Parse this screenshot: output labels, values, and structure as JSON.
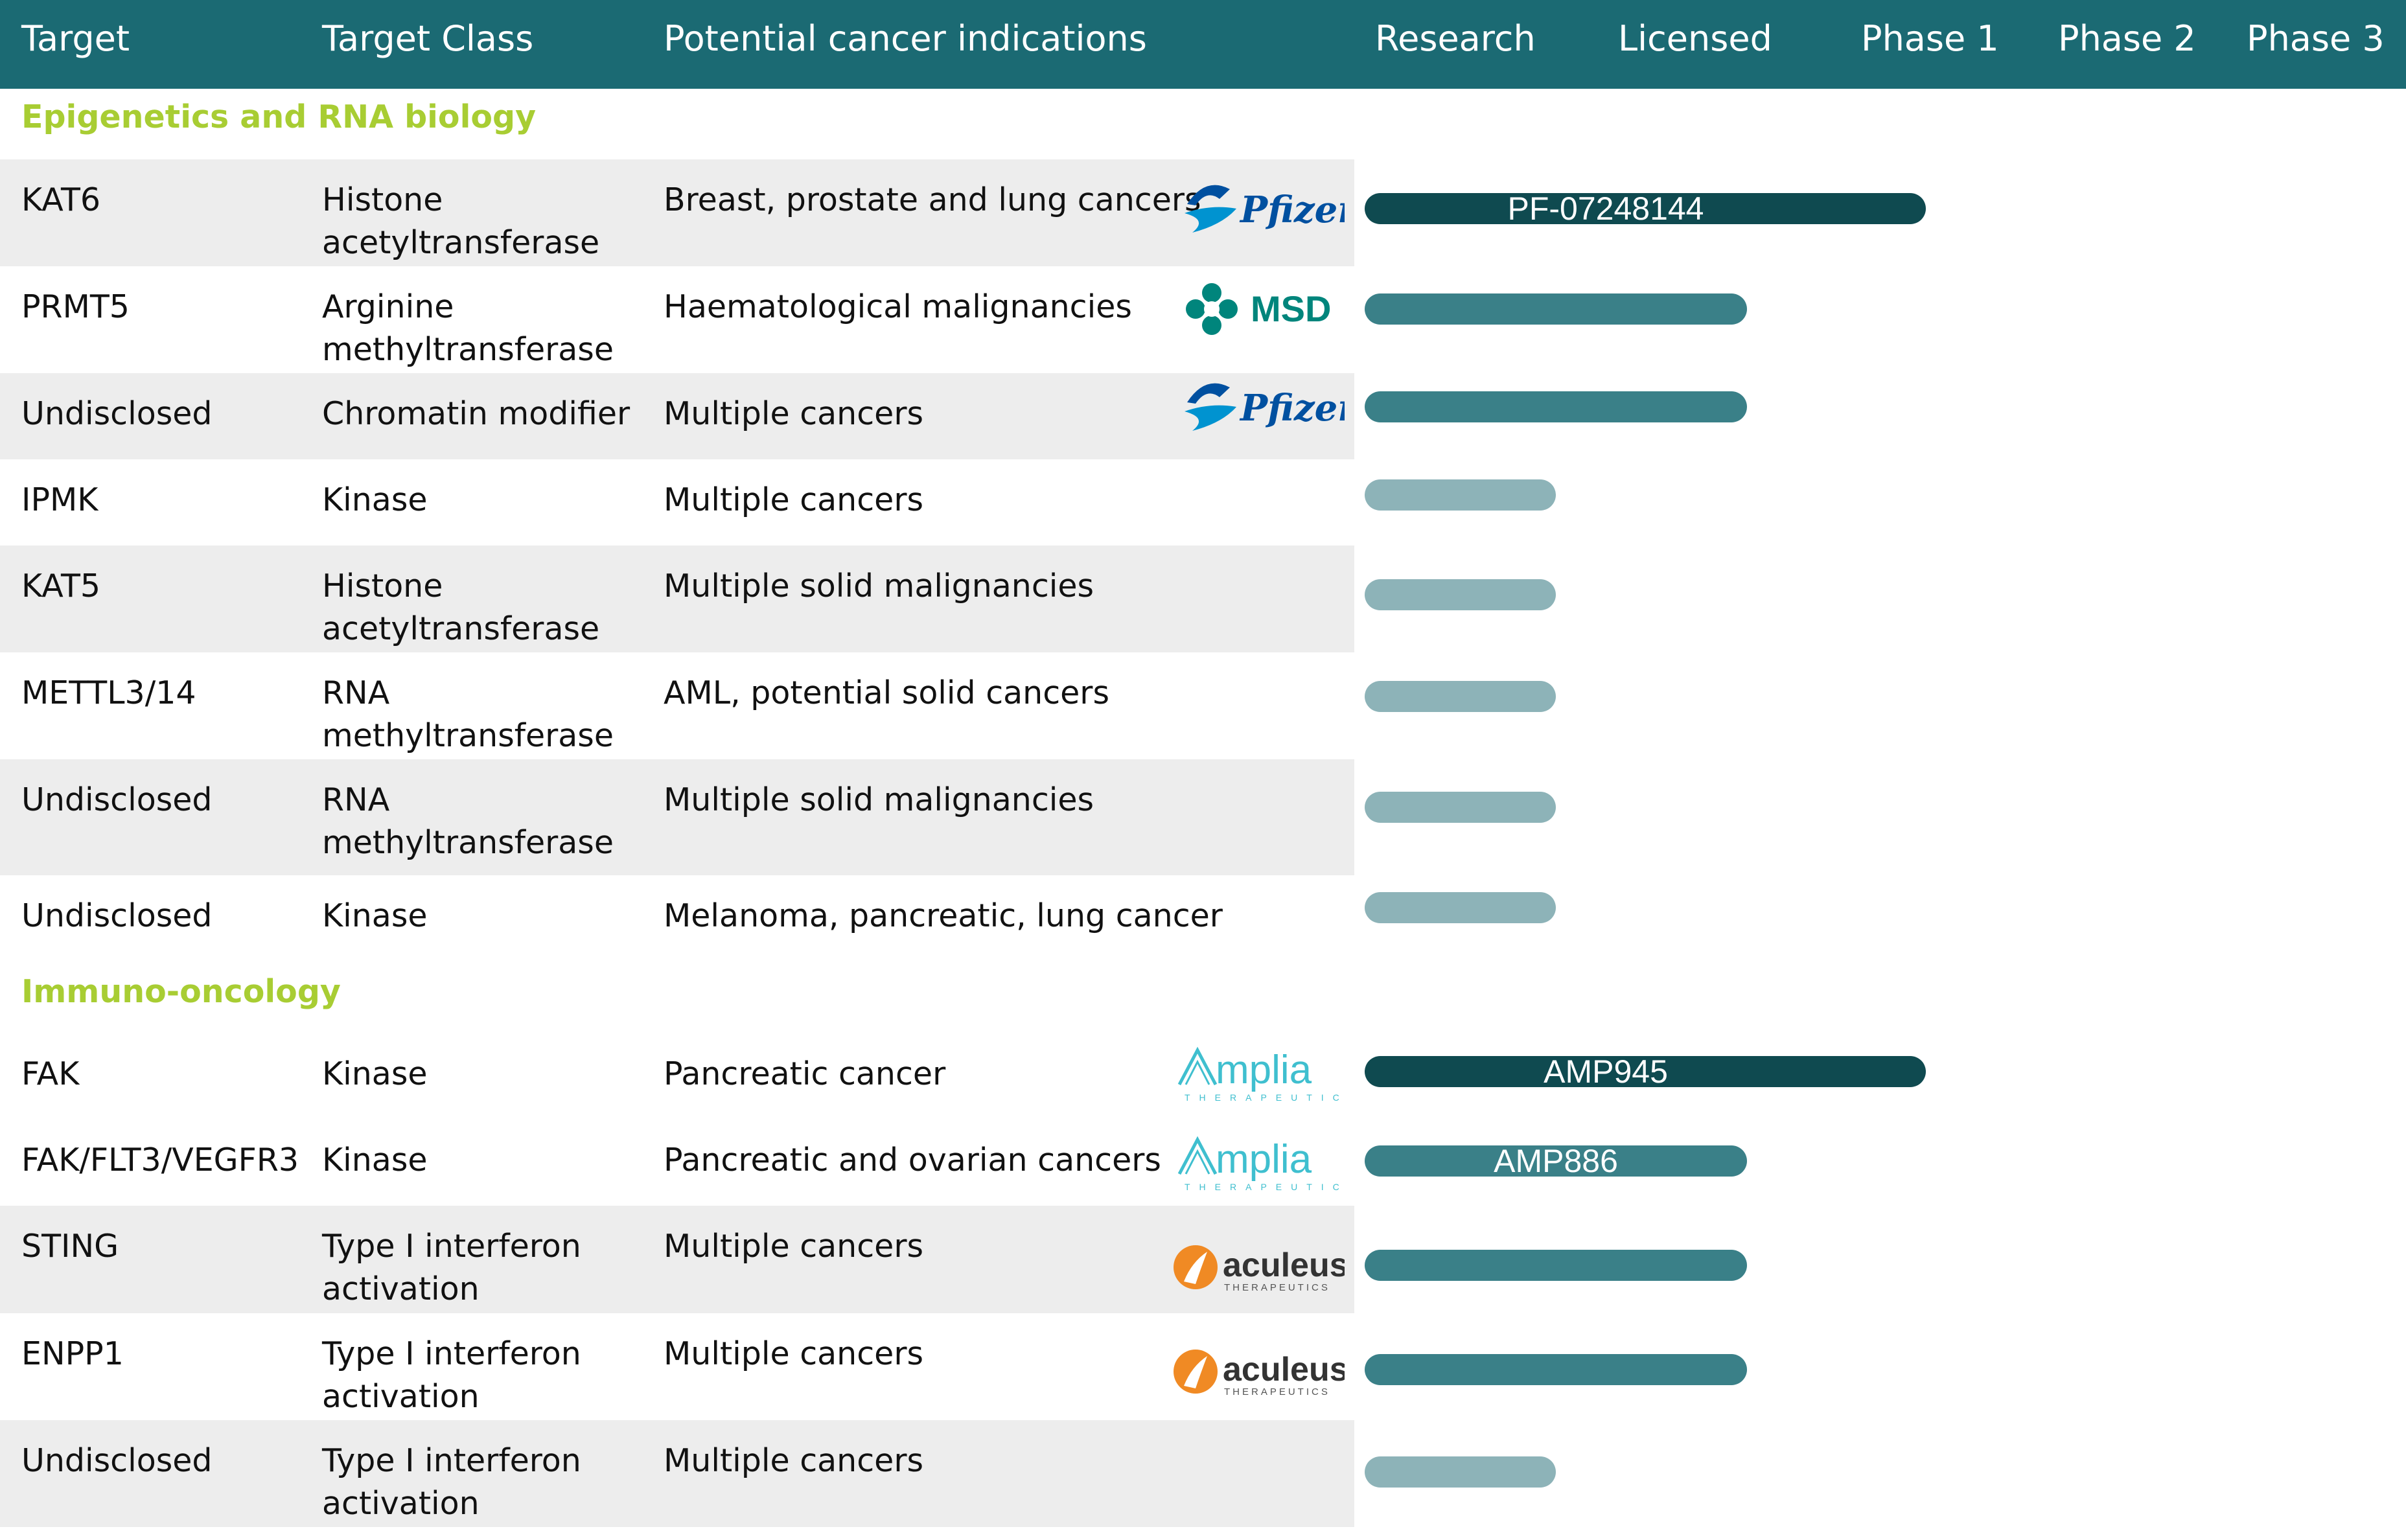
{
  "header": {
    "target": "Target",
    "target_class": "Target Class",
    "indications": "Potential cancer indications",
    "research": "Research",
    "licensed": "Licensed",
    "phase1": "Phase 1",
    "phase2": "Phase 2",
    "phase3": "Phase 3"
  },
  "sections": {
    "epigenetics": "Epigenetics and RNA biology",
    "immuno": "Immuno-oncology"
  },
  "logos": {
    "pfizer": "Pfizer",
    "msd": "MSD",
    "ampla_word": "mplia",
    "ampla_sub": "THERAPEUTICS",
    "aculeus_word": "aculeus",
    "aculeus_sub": "THERAPEUTICS"
  },
  "colors": {
    "header_bg": "#1b6a73",
    "section_text": "#a8cd33",
    "row_shade": "#ededed",
    "phase1_bar": "#0f4a50",
    "licensed_bar": "#3a8088",
    "research_bar": "#8db3b8"
  },
  "rows": [
    {
      "target": "KAT6",
      "class_lines": [
        "Histone",
        "acetyltransferase"
      ],
      "indication": "Breast, prostate and lung cancers",
      "partner": "pfizer"
    },
    {
      "target": "PRMT5",
      "class_lines": [
        "Arginine",
        "methyltransferase"
      ],
      "indication": "Haematological malignancies",
      "partner": "msd"
    },
    {
      "target": "Undisclosed",
      "class_lines": [
        "Chromatin modifier"
      ],
      "indication": "Multiple cancers",
      "partner": "pfizer"
    },
    {
      "target": "IPMK",
      "class_lines": [
        "Kinase"
      ],
      "indication": "Multiple cancers",
      "partner": ""
    },
    {
      "target": "KAT5",
      "class_lines": [
        "Histone",
        "acetyltransferase"
      ],
      "indication": "Multiple solid malignancies",
      "partner": ""
    },
    {
      "target": "METTL3/14",
      "class_lines": [
        "RNA",
        "methyltransferase"
      ],
      "indication": "AML, potential solid cancers",
      "partner": ""
    },
    {
      "target": "Undisclosed",
      "class_lines": [
        "RNA",
        "methyltransferase"
      ],
      "indication": "Multiple solid malignancies",
      "partner": ""
    },
    {
      "target": "Undisclosed",
      "class_lines": [
        "Kinase"
      ],
      "indication": "Melanoma, pancreatic, lung cancer",
      "partner": ""
    },
    {
      "target": "FAK",
      "class_lines": [
        "Kinase"
      ],
      "indication": "Pancreatic cancer",
      "partner": "ampla"
    },
    {
      "target": "FAK/FLT3/VEGFR3",
      "class_lines": [
        "Kinase"
      ],
      "indication": "Pancreatic and ovarian cancers",
      "partner": "ampla"
    },
    {
      "target": "STING",
      "class_lines": [
        "Type I interferon",
        "activation"
      ],
      "indication": "Multiple cancers",
      "partner": "aculeus"
    },
    {
      "target": "ENPP1",
      "class_lines": [
        "Type I interferon",
        "activation"
      ],
      "indication": "Multiple cancers",
      "partner": "aculeus"
    },
    {
      "target": "Undisclosed",
      "class_lines": [
        "Type I interferon",
        "activation"
      ],
      "indication": "Multiple cancers",
      "partner": ""
    }
  ],
  "chart_data": {
    "type": "bar",
    "orientation": "horizontal",
    "stages": [
      "Research",
      "Licensed",
      "Phase 1",
      "Phase 2",
      "Phase 3"
    ],
    "categories": [
      "KAT6",
      "PRMT5",
      "Undisclosed",
      "IPMK",
      "KAT5",
      "METTL3/14",
      "Undisclosed",
      "Undisclosed",
      "FAK",
      "FAK/FLT3/VEGFR3",
      "STING",
      "ENPP1",
      "Undisclosed"
    ],
    "values": [
      {
        "stage": "Phase 1",
        "progress": 1.32,
        "label": "PF-07248144"
      },
      {
        "stage": "Licensed",
        "progress": 0.9,
        "label": ""
      },
      {
        "stage": "Licensed",
        "progress": 0.9,
        "label": ""
      },
      {
        "stage": "Research",
        "progress": 0.45,
        "label": ""
      },
      {
        "stage": "Research",
        "progress": 0.45,
        "label": ""
      },
      {
        "stage": "Research",
        "progress": 0.45,
        "label": ""
      },
      {
        "stage": "Research",
        "progress": 0.45,
        "label": ""
      },
      {
        "stage": "Research",
        "progress": 0.45,
        "label": ""
      },
      {
        "stage": "Phase 1",
        "progress": 1.32,
        "label": "AMP945"
      },
      {
        "stage": "Licensed",
        "progress": 0.9,
        "label": "AMP886"
      },
      {
        "stage": "Licensed",
        "progress": 0.9,
        "label": ""
      },
      {
        "stage": "Licensed",
        "progress": 0.9,
        "label": ""
      },
      {
        "stage": "Research",
        "progress": 0.45,
        "label": ""
      }
    ],
    "progress_unit": "phase columns from the start of Research"
  }
}
